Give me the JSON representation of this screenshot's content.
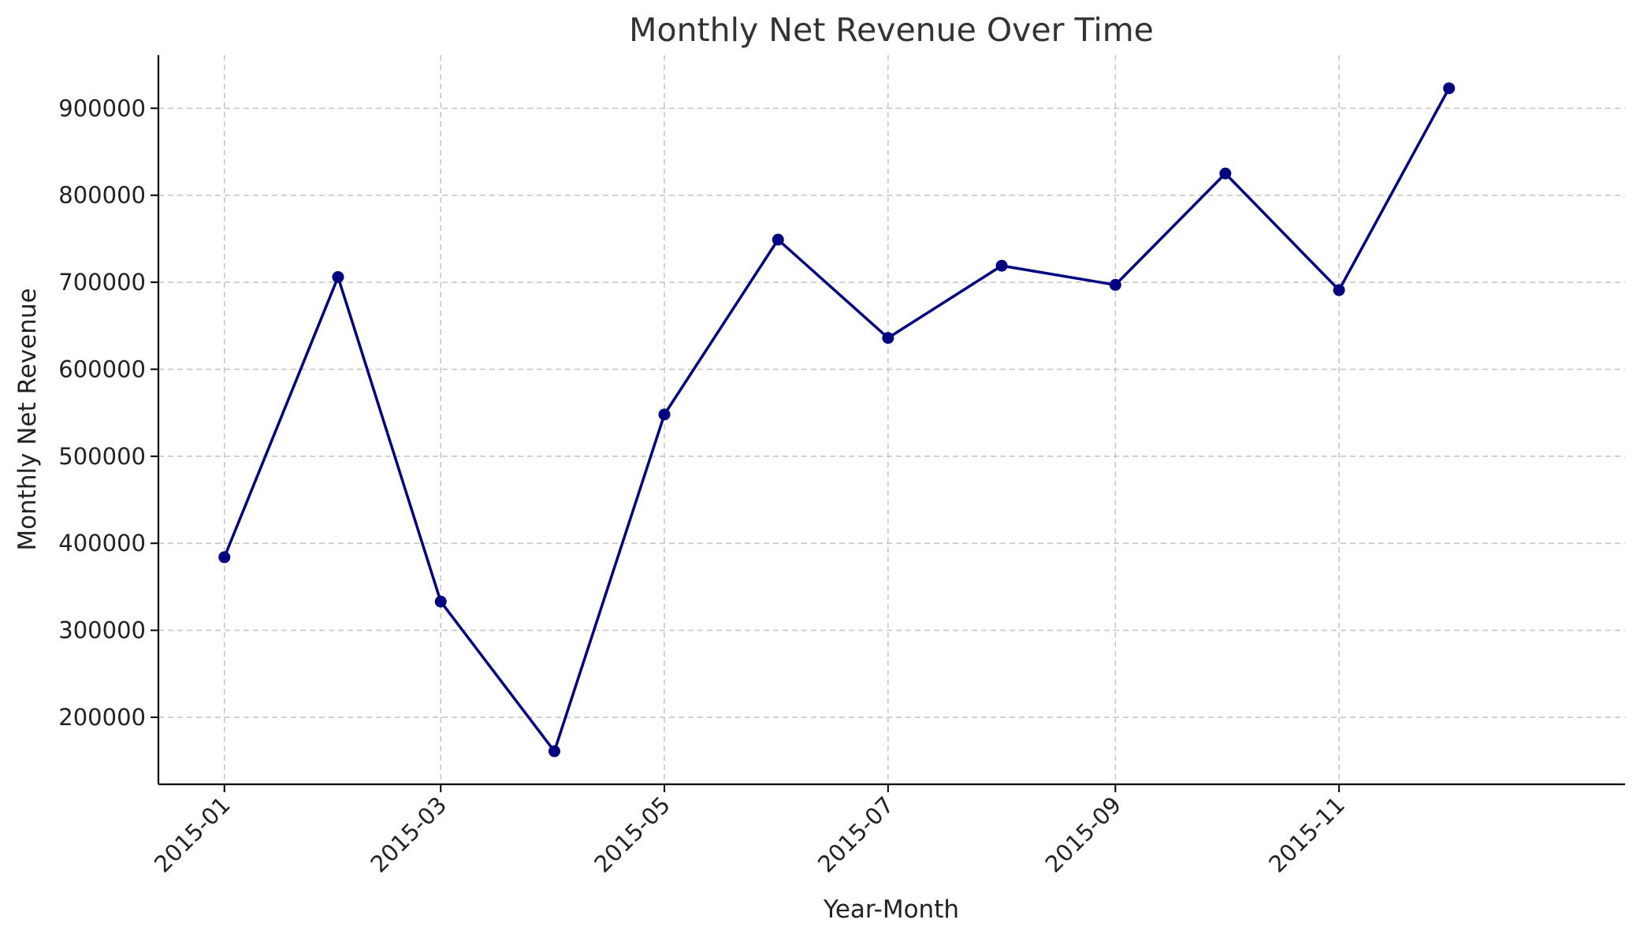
{
  "chart_data": {
    "type": "line",
    "title": "Monthly Net Revenue Over Time",
    "xlabel": "Year-Month",
    "ylabel": "Monthly Net Revenue",
    "x": [
      "2015-01",
      "2015-02",
      "2015-03",
      "2015-04",
      "2015-05",
      "2015-06",
      "2015-07",
      "2015-08",
      "2015-09",
      "2015-10",
      "2015-11",
      "2015-12"
    ],
    "series": [
      {
        "values": [
          384000,
          706000,
          333000,
          161000,
          548000,
          749000,
          636000,
          719000,
          697000,
          825000,
          691000,
          923000
        ],
        "color": "#000080",
        "marker": "circle"
      }
    ],
    "x_ticks": [
      "2015-01",
      "2015-03",
      "2015-05",
      "2015-07",
      "2015-09",
      "2015-11"
    ],
    "y_ticks": [
      200000,
      300000,
      400000,
      500000,
      600000,
      700000,
      800000,
      900000
    ],
    "ylim": [
      123000,
      961000
    ],
    "xlim": [
      "2014-12-14",
      "2016-01-18"
    ],
    "grid": true,
    "legend": "none"
  }
}
